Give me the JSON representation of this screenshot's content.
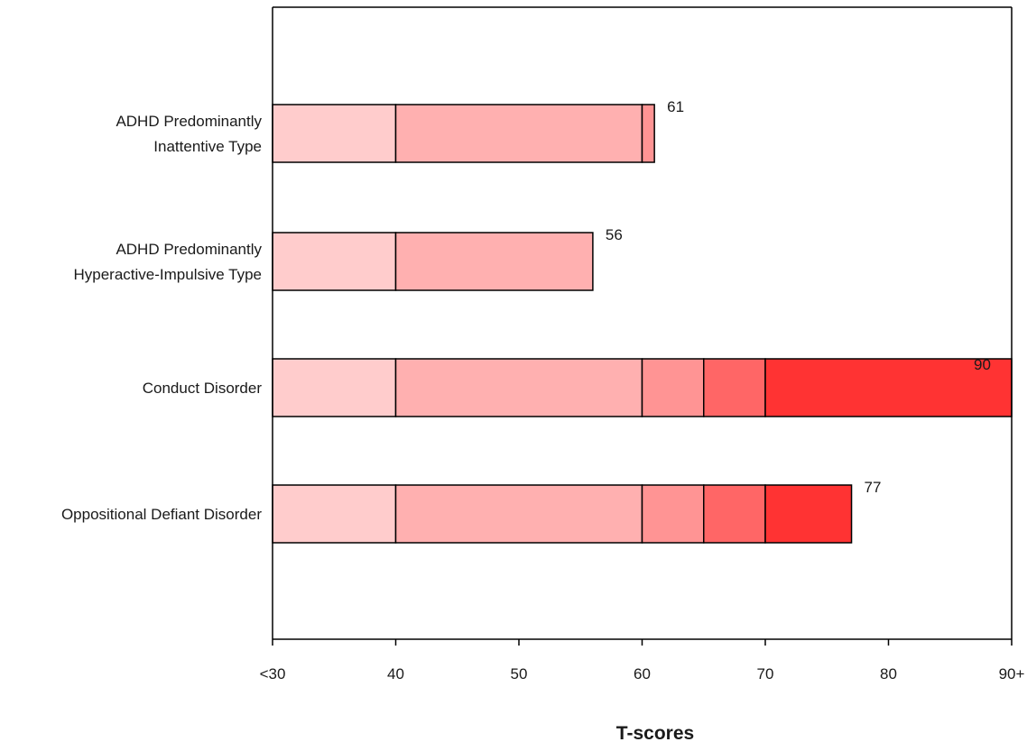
{
  "chart_data": {
    "type": "bar",
    "orientation": "horizontal",
    "stacked_bands": true,
    "xlabel": "T-scores",
    "ylabel": "",
    "xlim": [
      30,
      90
    ],
    "x_ticks": [
      30,
      40,
      50,
      60,
      70,
      80,
      90
    ],
    "x_tick_labels": [
      "<30",
      "40",
      "50",
      "60",
      "70",
      "80",
      "90+"
    ],
    "band_edges": [
      30,
      40,
      60,
      65,
      70,
      90
    ],
    "band_colors": [
      "#ffcccc",
      "#ffb0b0",
      "#ff9494",
      "#ff6666",
      "#ff3333"
    ],
    "grid": false,
    "legend": "none",
    "categories": [
      {
        "label_lines": [
          "ADHD Predominantly",
          "Inattentive Type"
        ],
        "value": 61,
        "value_label": "61"
      },
      {
        "label_lines": [
          "ADHD Predominantly",
          "Hyperactive-Impulsive Type"
        ],
        "value": 56,
        "value_label": "56"
      },
      {
        "label_lines": [
          "Conduct Disorder"
        ],
        "value": 90,
        "value_label": "90"
      },
      {
        "label_lines": [
          "Oppositional Defiant Disorder"
        ],
        "value": 77,
        "value_label": "77"
      }
    ]
  }
}
